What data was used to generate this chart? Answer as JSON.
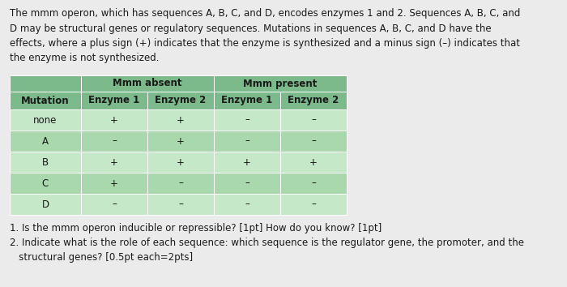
{
  "background_color": "#ebebeb",
  "intro_text": "The mmm operon, which has sequences A, B, C, and D, encodes enzymes 1 and 2. Sequences A, B, C, and\nD may be structural genes or regulatory sequences. Mutations in sequences A, B, C, and D have the\neffects, where a plus sign (+) indicates that the enzyme is synthesized and a minus sign (–) indicates that\nthe enzyme is not synthesized.",
  "table": {
    "rows": [
      [
        "none",
        "+",
        "+",
        "–",
        "–"
      ],
      [
        "A",
        "–",
        "+",
        "–",
        "–"
      ],
      [
        "B",
        "+",
        "+",
        "+",
        "+"
      ],
      [
        "C",
        "+",
        "–",
        "–",
        "–"
      ],
      [
        "D",
        "–",
        "–",
        "–",
        "–"
      ]
    ],
    "header_bg": "#7cba8b",
    "row_bg_light": "#c5e8c8",
    "row_bg_dark": "#a8d8ac",
    "text_color": "#1a1a1a",
    "header_text_color": "#1a1a1a"
  },
  "questions": [
    "1. Is the mmm operon inducible or repressible? [1pt] How do you know? [1pt]",
    "2. Indicate what is the role of each sequence: which sequence is the regulator gene, the promoter, and the\n   structural genes? [0.5pt each=2pts]"
  ],
  "font_size_intro": 8.5,
  "font_size_table": 8.5,
  "font_size_questions": 8.5
}
